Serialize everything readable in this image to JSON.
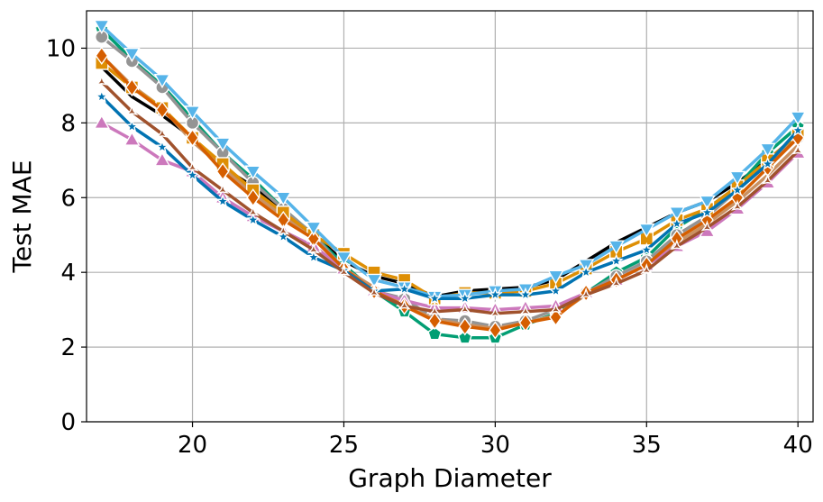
{
  "chart_data": {
    "type": "line",
    "xlabel": "Graph Diameter",
    "ylabel": "Test MAE",
    "xlim": [
      16.5,
      40.5
    ],
    "ylim": [
      0,
      11
    ],
    "xticks": [
      20,
      25,
      30,
      35,
      40
    ],
    "yticks": [
      0,
      2,
      4,
      6,
      8,
      10
    ],
    "grid": true,
    "x": [
      17,
      18,
      19,
      20,
      21,
      22,
      23,
      24,
      25,
      26,
      27,
      28,
      29,
      30,
      31,
      32,
      33,
      34,
      35,
      36,
      37,
      38,
      39,
      40
    ],
    "series": [
      {
        "color": "#000000",
        "marker": "none",
        "values": [
          9.5,
          8.7,
          8.2,
          7.6,
          6.8,
          6.3,
          5.6,
          5.0,
          4.3,
          3.9,
          3.7,
          3.35,
          3.5,
          3.55,
          3.6,
          3.8,
          4.3,
          4.8,
          5.2,
          5.6,
          5.9,
          6.4,
          7.0,
          7.7
        ]
      },
      {
        "color": "#029e73",
        "marker": "pentagon",
        "values": [
          10.5,
          9.7,
          9.0,
          8.1,
          7.2,
          6.5,
          5.7,
          5.0,
          4.2,
          3.5,
          2.95,
          2.35,
          2.25,
          2.25,
          2.6,
          2.9,
          3.45,
          4.0,
          4.4,
          5.2,
          5.7,
          6.3,
          7.2,
          7.9
        ]
      },
      {
        "color": "#949494",
        "marker": "circle",
        "values": [
          10.3,
          9.65,
          8.95,
          8.0,
          7.2,
          6.4,
          5.7,
          5.0,
          4.1,
          3.5,
          3.3,
          2.75,
          2.7,
          2.55,
          2.7,
          3.0,
          3.45,
          3.9,
          4.3,
          5.0,
          5.5,
          6.2,
          6.9,
          7.6
        ]
      },
      {
        "color": "#ca9161",
        "marker": "none",
        "values": [
          9.8,
          9.0,
          8.4,
          7.5,
          6.8,
          6.1,
          5.5,
          4.9,
          4.1,
          3.6,
          3.1,
          2.75,
          2.6,
          2.5,
          2.65,
          2.85,
          3.4,
          3.8,
          4.2,
          4.8,
          5.3,
          5.9,
          6.6,
          7.4
        ]
      },
      {
        "color": "#cc78bc",
        "marker": "triangle-up",
        "values": [
          8.0,
          7.55,
          7.0,
          6.7,
          6.0,
          5.5,
          5.1,
          4.7,
          4.1,
          3.5,
          3.25,
          3.05,
          3.05,
          3.0,
          3.05,
          3.1,
          3.45,
          3.8,
          4.2,
          4.7,
          5.1,
          5.7,
          6.4,
          7.2
        ]
      },
      {
        "color": "#de8f05",
        "marker": "square",
        "values": [
          9.6,
          8.95,
          8.4,
          7.6,
          6.9,
          6.2,
          5.6,
          5.0,
          4.5,
          4.0,
          3.8,
          3.3,
          3.45,
          3.45,
          3.5,
          3.7,
          4.1,
          4.55,
          4.9,
          5.4,
          5.7,
          6.3,
          7.0,
          7.7
        ]
      },
      {
        "color": "#d55e00",
        "marker": "diamond",
        "values": [
          9.8,
          8.95,
          8.35,
          7.6,
          6.7,
          6.0,
          5.4,
          4.9,
          4.1,
          3.5,
          3.1,
          2.7,
          2.55,
          2.45,
          2.65,
          2.8,
          3.45,
          3.8,
          4.2,
          4.9,
          5.4,
          6.0,
          6.8,
          7.6
        ]
      },
      {
        "color": "#56b4e9",
        "marker": "triangle-down",
        "values": [
          10.6,
          9.85,
          9.15,
          8.3,
          7.45,
          6.7,
          6.0,
          5.2,
          4.4,
          3.8,
          3.6,
          3.35,
          3.4,
          3.5,
          3.55,
          3.9,
          4.2,
          4.7,
          5.15,
          5.6,
          5.9,
          6.55,
          7.3,
          8.15
        ]
      },
      {
        "color": "#0173b2",
        "marker": "star",
        "values": [
          8.7,
          7.9,
          7.35,
          6.6,
          5.9,
          5.4,
          4.95,
          4.4,
          4.05,
          3.5,
          3.55,
          3.3,
          3.3,
          3.4,
          3.4,
          3.5,
          4.0,
          4.3,
          4.6,
          5.3,
          5.6,
          6.2,
          6.9,
          7.8
        ]
      },
      {
        "color": "#a0522d",
        "marker": "tri",
        "values": [
          9.1,
          8.3,
          7.7,
          6.8,
          6.2,
          5.6,
          5.1,
          4.6,
          4.0,
          3.45,
          3.1,
          2.95,
          3.0,
          2.9,
          2.95,
          3.0,
          3.4,
          3.7,
          4.05,
          4.7,
          5.2,
          5.75,
          6.45,
          7.25
        ]
      }
    ]
  }
}
